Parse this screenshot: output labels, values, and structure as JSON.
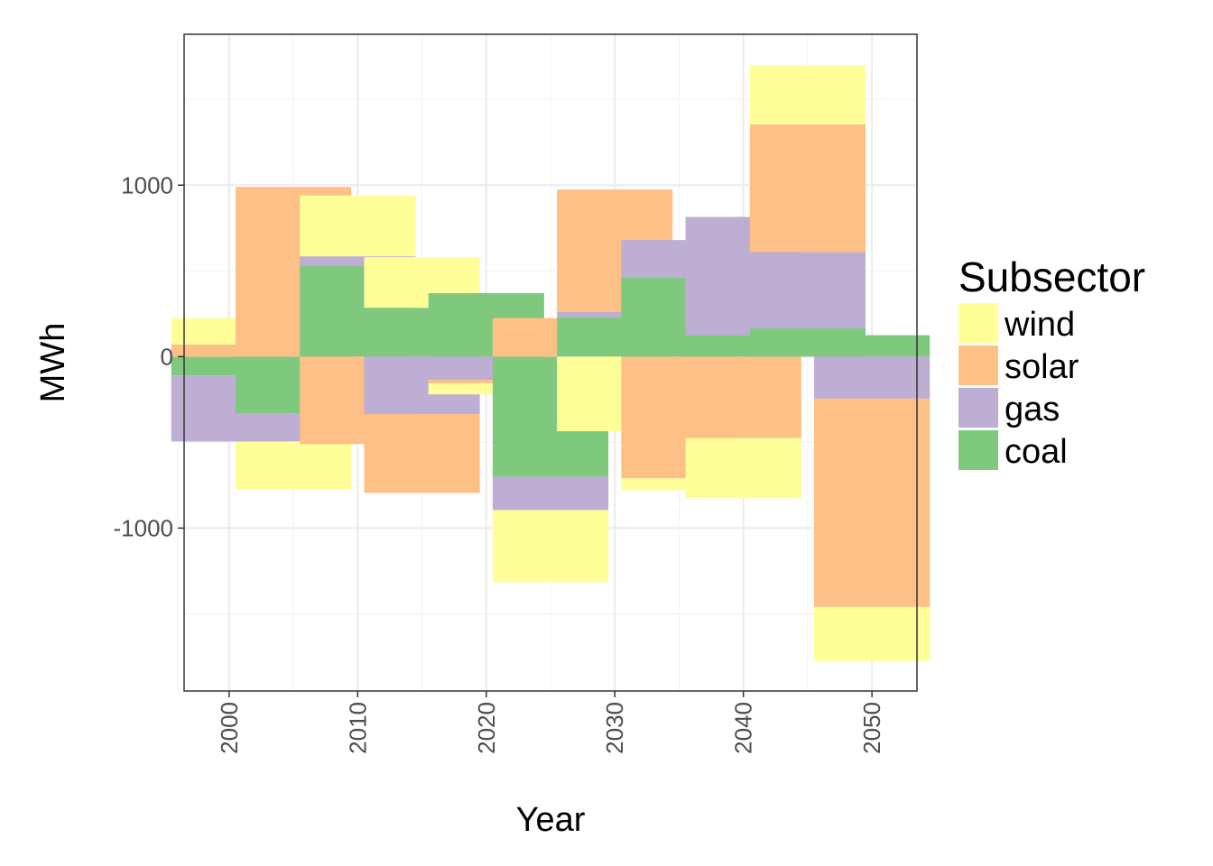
{
  "chart_data": {
    "type": "bar",
    "stacked": true,
    "title": "",
    "xlabel": "Year",
    "ylabel": "MWh",
    "x": [
      2000,
      2005,
      2010,
      2015,
      2020,
      2025,
      2030,
      2035,
      2040,
      2045,
      2050
    ],
    "xticks": [
      "2000",
      "2010",
      "2020",
      "2030",
      "2040",
      "2050"
    ],
    "yticks": [
      "-1000",
      "0",
      "1000"
    ],
    "ylim": [
      -1950,
      1880
    ],
    "xlim": [
      1996.5,
      2053.5
    ],
    "grid": true,
    "legend": {
      "title": "Subsector",
      "placement": "right"
    },
    "series": [
      {
        "name": "coal",
        "color": "#7fc97f",
        "values": [
          -110,
          -330,
          530,
          285,
          370,
          -700,
          230,
          460,
          125,
          165,
          125
        ]
      },
      {
        "name": "gas",
        "color": "#beaed4",
        "values": [
          -385,
          -165,
          55,
          -335,
          -135,
          -195,
          30,
          220,
          690,
          445,
          -245
        ]
      },
      {
        "name": "solar",
        "color": "#fdc086",
        "values": [
          70,
          990,
          -510,
          -460,
          -20,
          225,
          715,
          -710,
          -475,
          745,
          -1215
        ]
      },
      {
        "name": "wind",
        "color": "#ffff99",
        "values": [
          155,
          -280,
          355,
          295,
          -65,
          -420,
          -435,
          -70,
          -350,
          345,
          -315
        ]
      }
    ]
  }
}
